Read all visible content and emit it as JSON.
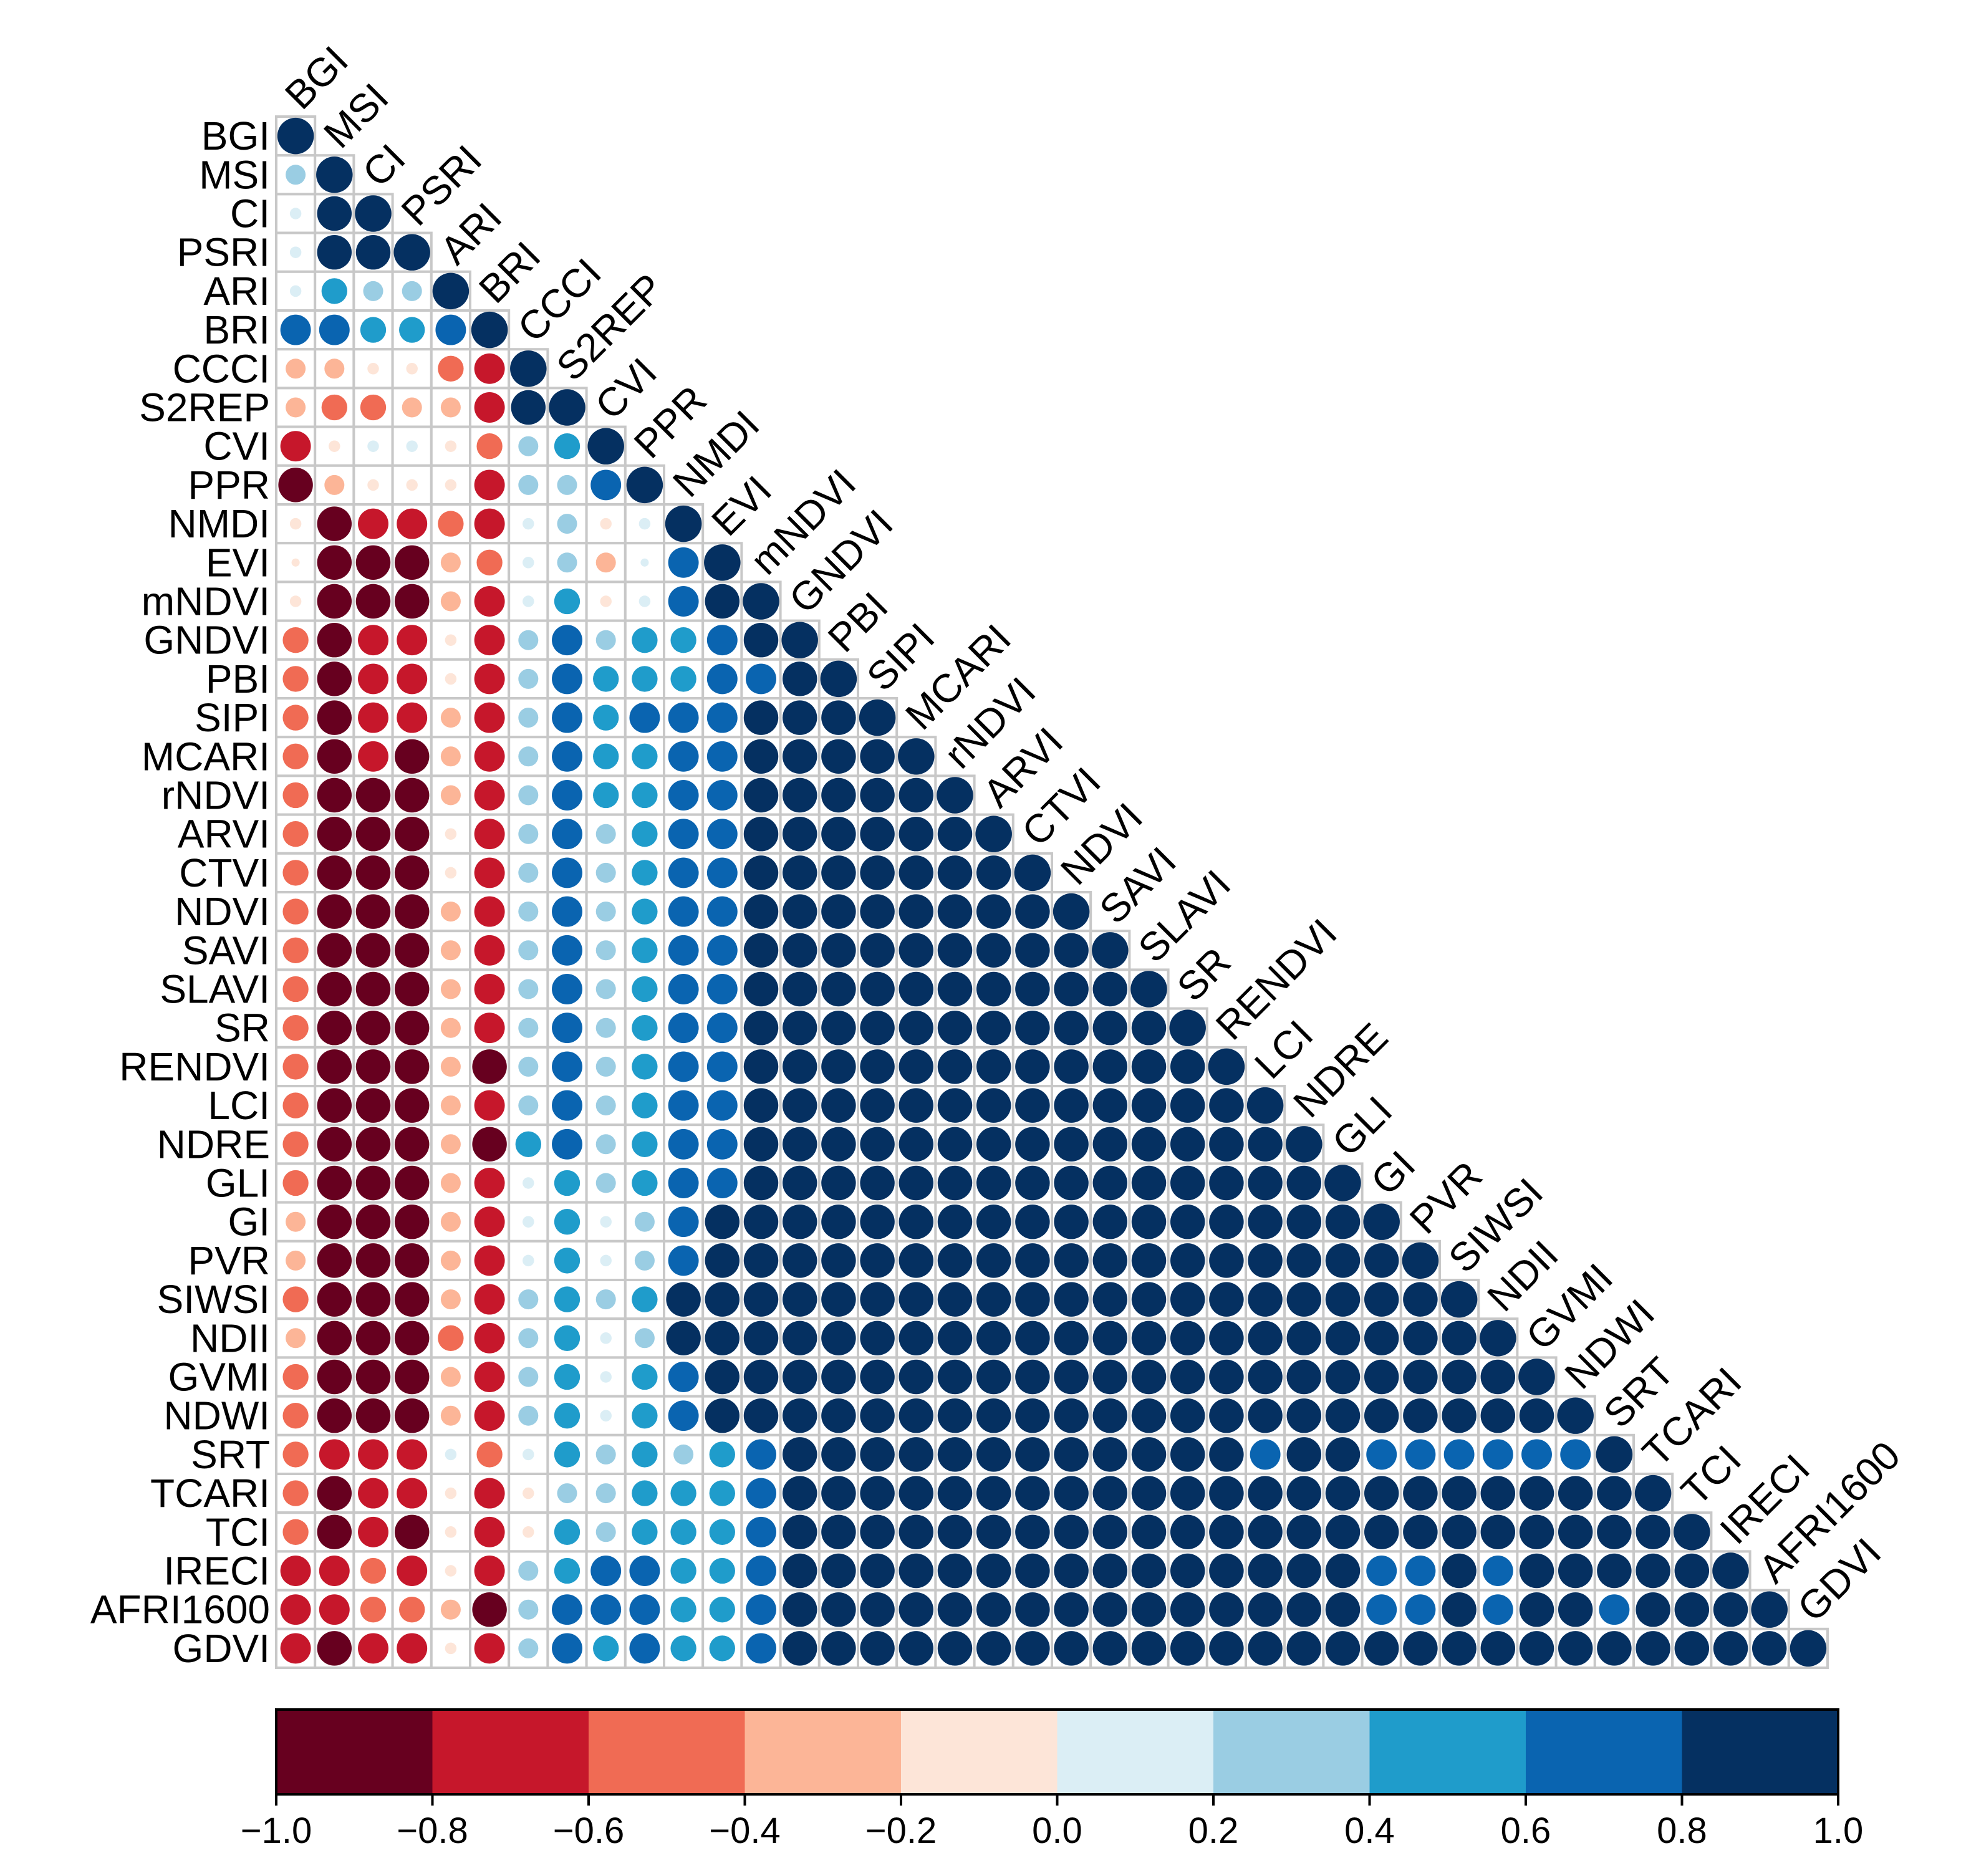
{
  "chart_data": {
    "type": "heatmap",
    "style": "lower-triangle correlation circle matrix",
    "labels": [
      "BGI",
      "MSI",
      "CI",
      "PSRI",
      "ARI",
      "BRI",
      "CCCI",
      "S2REP",
      "CVI",
      "PPR",
      "NMDI",
      "EVI",
      "mNDVI",
      "GNDVI",
      "PBI",
      "SIPI",
      "MCARI",
      "rNDVI",
      "ARVI",
      "CTVI",
      "NDVI",
      "SAVI",
      "SLAVI",
      "SR",
      "RENDVI",
      "LCI",
      "NDRE",
      "GLI",
      "GI",
      "PVR",
      "SIWSI",
      "NDII",
      "GVMI",
      "NDWI",
      "SRT",
      "TCARI",
      "TCI",
      "IRECI",
      "AFRI1600",
      "GDVI"
    ],
    "matrix": [
      [
        1.0
      ],
      [
        0.3,
        1.0
      ],
      [
        0.1,
        0.9,
        1.0
      ],
      [
        0.1,
        0.9,
        0.9,
        1.0
      ],
      [
        0.1,
        0.5,
        0.3,
        0.3,
        1.0
      ],
      [
        0.7,
        0.7,
        0.5,
        0.5,
        0.7,
        1.0
      ],
      [
        -0.3,
        -0.3,
        -0.1,
        -0.1,
        -0.5,
        -0.7,
        1.0
      ],
      [
        -0.3,
        -0.5,
        -0.5,
        -0.3,
        -0.3,
        -0.7,
        0.9,
        1.0
      ],
      [
        -0.7,
        -0.1,
        0.1,
        0.1,
        -0.1,
        -0.5,
        0.3,
        0.5,
        1.0
      ],
      [
        -0.9,
        -0.3,
        -0.1,
        -0.1,
        -0.1,
        -0.7,
        0.3,
        0.3,
        0.7,
        1.0
      ],
      [
        -0.1,
        -0.9,
        -0.7,
        -0.7,
        -0.5,
        -0.7,
        0.1,
        0.3,
        -0.1,
        0.1,
        1.0
      ],
      [
        -0.05,
        -0.9,
        -0.9,
        -0.9,
        -0.3,
        -0.5,
        0.1,
        0.3,
        -0.3,
        0.05,
        0.7,
        1.0
      ],
      [
        -0.1,
        -0.9,
        -0.9,
        -0.9,
        -0.3,
        -0.7,
        0.1,
        0.5,
        -0.1,
        0.1,
        0.7,
        0.9,
        1.0
      ],
      [
        -0.5,
        -0.9,
        -0.7,
        -0.7,
        -0.1,
        -0.7,
        0.3,
        0.7,
        0.3,
        0.5,
        0.5,
        0.7,
        0.9,
        1.0
      ],
      [
        -0.5,
        -0.9,
        -0.7,
        -0.7,
        -0.1,
        -0.7,
        0.3,
        0.7,
        0.5,
        0.5,
        0.5,
        0.7,
        0.7,
        0.9,
        1.0
      ],
      [
        -0.5,
        -0.9,
        -0.7,
        -0.7,
        -0.3,
        -0.7,
        0.3,
        0.7,
        0.5,
        0.7,
        0.7,
        0.7,
        0.9,
        0.9,
        0.9,
        1.0
      ],
      [
        -0.5,
        -0.9,
        -0.7,
        -0.9,
        -0.3,
        -0.7,
        0.3,
        0.7,
        0.5,
        0.5,
        0.7,
        0.7,
        0.9,
        0.9,
        0.9,
        0.9,
        1.0
      ],
      [
        -0.5,
        -0.9,
        -0.9,
        -0.9,
        -0.3,
        -0.7,
        0.3,
        0.7,
        0.5,
        0.5,
        0.7,
        0.7,
        0.9,
        0.9,
        0.9,
        0.9,
        0.9,
        1.0
      ],
      [
        -0.5,
        -0.9,
        -0.9,
        -0.9,
        -0.1,
        -0.7,
        0.3,
        0.7,
        0.3,
        0.5,
        0.7,
        0.7,
        0.9,
        0.9,
        0.9,
        0.9,
        0.9,
        0.9,
        1.0
      ],
      [
        -0.5,
        -0.9,
        -0.9,
        -0.9,
        -0.1,
        -0.7,
        0.3,
        0.7,
        0.3,
        0.5,
        0.7,
        0.7,
        0.9,
        0.9,
        0.9,
        0.9,
        0.9,
        0.9,
        0.9,
        1.0
      ],
      [
        -0.5,
        -0.9,
        -0.9,
        -0.9,
        -0.3,
        -0.7,
        0.3,
        0.7,
        0.3,
        0.5,
        0.7,
        0.7,
        0.9,
        0.9,
        0.9,
        0.9,
        0.9,
        0.9,
        0.9,
        0.9,
        1.0
      ],
      [
        -0.5,
        -0.9,
        -0.9,
        -0.9,
        -0.3,
        -0.7,
        0.3,
        0.7,
        0.3,
        0.5,
        0.7,
        0.7,
        0.9,
        0.9,
        0.9,
        0.9,
        0.9,
        0.9,
        0.9,
        0.9,
        0.9,
        1.0
      ],
      [
        -0.5,
        -0.9,
        -0.9,
        -0.9,
        -0.3,
        -0.7,
        0.3,
        0.7,
        0.3,
        0.5,
        0.7,
        0.7,
        0.9,
        0.9,
        0.9,
        0.9,
        0.9,
        0.9,
        0.9,
        0.9,
        0.9,
        0.9,
        1.0
      ],
      [
        -0.5,
        -0.9,
        -0.9,
        -0.9,
        -0.3,
        -0.7,
        0.3,
        0.7,
        0.3,
        0.5,
        0.7,
        0.7,
        0.9,
        0.9,
        0.9,
        0.9,
        0.9,
        0.9,
        0.9,
        0.9,
        0.9,
        0.9,
        0.9,
        1.0
      ],
      [
        -0.5,
        -0.9,
        -0.9,
        -0.9,
        -0.3,
        -0.9,
        0.3,
        0.7,
        0.3,
        0.5,
        0.7,
        0.7,
        0.9,
        0.9,
        0.9,
        0.9,
        0.9,
        0.9,
        0.9,
        0.9,
        0.9,
        0.9,
        0.9,
        0.9,
        1.0
      ],
      [
        -0.5,
        -0.9,
        -0.9,
        -0.9,
        -0.3,
        -0.7,
        0.3,
        0.7,
        0.3,
        0.5,
        0.7,
        0.7,
        0.9,
        0.9,
        0.9,
        0.9,
        0.9,
        0.9,
        0.9,
        0.9,
        0.9,
        0.9,
        0.9,
        0.9,
        0.9,
        1.0
      ],
      [
        -0.5,
        -0.9,
        -0.9,
        -0.9,
        -0.3,
        -0.9,
        0.5,
        0.7,
        0.3,
        0.5,
        0.7,
        0.7,
        0.9,
        0.9,
        0.9,
        0.9,
        0.9,
        0.9,
        0.9,
        0.9,
        0.9,
        0.9,
        0.9,
        0.9,
        0.9,
        0.9,
        1.0
      ],
      [
        -0.5,
        -0.9,
        -0.9,
        -0.9,
        -0.3,
        -0.7,
        0.1,
        0.5,
        0.3,
        0.5,
        0.7,
        0.7,
        0.9,
        0.9,
        0.9,
        0.9,
        0.9,
        0.9,
        0.9,
        0.9,
        0.9,
        0.9,
        0.9,
        0.9,
        0.9,
        0.9,
        0.9,
        1.0
      ],
      [
        -0.3,
        -0.9,
        -0.9,
        -0.9,
        -0.3,
        -0.7,
        0.1,
        0.5,
        0.1,
        0.3,
        0.7,
        0.9,
        0.9,
        0.9,
        0.9,
        0.9,
        0.9,
        0.9,
        0.9,
        0.9,
        0.9,
        0.9,
        0.9,
        0.9,
        0.9,
        0.9,
        0.9,
        0.9,
        1.0
      ],
      [
        -0.3,
        -0.9,
        -0.9,
        -0.9,
        -0.3,
        -0.7,
        0.1,
        0.5,
        0.1,
        0.3,
        0.7,
        0.9,
        0.9,
        0.9,
        0.9,
        0.9,
        0.9,
        0.9,
        0.9,
        0.9,
        0.9,
        0.9,
        0.9,
        0.9,
        0.9,
        0.9,
        0.9,
        0.9,
        0.9,
        1.0
      ],
      [
        -0.5,
        -0.9,
        -0.9,
        -0.9,
        -0.3,
        -0.7,
        0.3,
        0.5,
        0.3,
        0.5,
        0.9,
        0.9,
        0.9,
        0.9,
        0.9,
        0.9,
        0.9,
        0.9,
        0.9,
        0.9,
        0.9,
        0.9,
        0.9,
        0.9,
        0.9,
        0.9,
        0.9,
        0.9,
        0.9,
        0.9,
        1.0
      ],
      [
        -0.3,
        -0.9,
        -0.9,
        -0.9,
        -0.5,
        -0.7,
        0.3,
        0.5,
        0.1,
        0.3,
        0.9,
        0.9,
        0.9,
        0.9,
        0.9,
        0.9,
        0.9,
        0.9,
        0.9,
        0.9,
        0.9,
        0.9,
        0.9,
        0.9,
        0.9,
        0.9,
        0.9,
        0.9,
        0.9,
        0.9,
        0.9,
        1.0
      ],
      [
        -0.5,
        -0.9,
        -0.9,
        -0.9,
        -0.3,
        -0.7,
        0.3,
        0.5,
        0.1,
        0.5,
        0.7,
        0.9,
        0.9,
        0.9,
        0.9,
        0.9,
        0.9,
        0.9,
        0.9,
        0.9,
        0.9,
        0.9,
        0.9,
        0.9,
        0.9,
        0.9,
        0.9,
        0.9,
        0.9,
        0.9,
        0.9,
        0.9,
        1.0
      ],
      [
        -0.5,
        -0.9,
        -0.9,
        -0.9,
        -0.3,
        -0.7,
        0.3,
        0.5,
        0.1,
        0.5,
        0.7,
        0.9,
        0.9,
        0.9,
        0.9,
        0.9,
        0.9,
        0.9,
        0.9,
        0.9,
        0.9,
        0.9,
        0.9,
        0.9,
        0.9,
        0.9,
        0.9,
        0.9,
        0.9,
        0.9,
        0.9,
        0.9,
        0.9,
        1.0
      ],
      [
        -0.5,
        -0.7,
        -0.7,
        -0.7,
        0.1,
        -0.5,
        0.1,
        0.5,
        0.3,
        0.5,
        0.3,
        0.5,
        0.7,
        0.9,
        0.9,
        0.9,
        0.9,
        0.9,
        0.9,
        0.9,
        0.9,
        0.9,
        0.9,
        0.9,
        0.9,
        0.7,
        0.9,
        0.9,
        0.7,
        0.7,
        0.7,
        0.7,
        0.7,
        0.7,
        1.0
      ],
      [
        -0.5,
        -0.9,
        -0.7,
        -0.7,
        -0.1,
        -0.7,
        -0.1,
        0.3,
        0.3,
        0.5,
        0.5,
        0.5,
        0.7,
        0.9,
        0.9,
        0.9,
        0.9,
        0.9,
        0.9,
        0.9,
        0.9,
        0.9,
        0.9,
        0.9,
        0.9,
        0.9,
        0.9,
        0.9,
        0.9,
        0.9,
        0.9,
        0.9,
        0.9,
        0.9,
        0.9,
        1.0
      ],
      [
        -0.5,
        -0.9,
        -0.7,
        -0.9,
        -0.1,
        -0.7,
        -0.1,
        0.5,
        0.3,
        0.5,
        0.5,
        0.5,
        0.7,
        0.9,
        0.9,
        0.9,
        0.9,
        0.9,
        0.9,
        0.9,
        0.9,
        0.9,
        0.9,
        0.9,
        0.9,
        0.9,
        0.9,
        0.9,
        0.9,
        0.9,
        0.9,
        0.9,
        0.9,
        0.9,
        0.9,
        0.9,
        1.0
      ],
      [
        -0.7,
        -0.7,
        -0.5,
        -0.7,
        -0.1,
        -0.7,
        0.3,
        0.5,
        0.7,
        0.7,
        0.5,
        0.5,
        0.7,
        0.9,
        0.9,
        0.9,
        0.9,
        0.9,
        0.9,
        0.9,
        0.9,
        0.9,
        0.9,
        0.9,
        0.9,
        0.9,
        0.9,
        0.9,
        0.7,
        0.7,
        0.9,
        0.7,
        0.9,
        0.9,
        0.9,
        0.9,
        0.9,
        1.0
      ],
      [
        -0.7,
        -0.7,
        -0.5,
        -0.5,
        -0.3,
        -0.9,
        0.3,
        0.7,
        0.7,
        0.7,
        0.5,
        0.5,
        0.7,
        0.9,
        0.9,
        0.9,
        0.9,
        0.9,
        0.9,
        0.9,
        0.9,
        0.9,
        0.9,
        0.9,
        0.9,
        0.9,
        0.9,
        0.9,
        0.7,
        0.7,
        0.9,
        0.7,
        0.9,
        0.9,
        0.7,
        0.9,
        0.9,
        0.9,
        1.0
      ],
      [
        -0.7,
        -0.9,
        -0.7,
        -0.7,
        -0.1,
        -0.7,
        0.3,
        0.7,
        0.5,
        0.7,
        0.5,
        0.5,
        0.7,
        0.9,
        0.9,
        0.9,
        0.9,
        0.9,
        0.9,
        0.9,
        0.9,
        0.9,
        0.9,
        0.9,
        0.9,
        0.9,
        0.9,
        0.9,
        0.9,
        0.9,
        0.9,
        0.9,
        0.9,
        0.9,
        0.9,
        0.9,
        0.9,
        0.9,
        0.9,
        1.0
      ]
    ],
    "colorbar": {
      "range": [
        -1.0,
        1.0
      ],
      "ticks": [
        "−1.0",
        "−0.8",
        "−0.6",
        "−0.4",
        "−0.2",
        "0.0",
        "0.2",
        "0.4",
        "0.6",
        "0.8",
        "1.0"
      ],
      "colors": [
        "#67001f",
        "#c6172b",
        "#f06b54",
        "#fcb597",
        "#fde5d8",
        "#dbeef5",
        "#9acde3",
        "#1f9ccb",
        "#0a64b0",
        "#053061"
      ]
    },
    "cell_border_color": "#c8c8c8"
  }
}
